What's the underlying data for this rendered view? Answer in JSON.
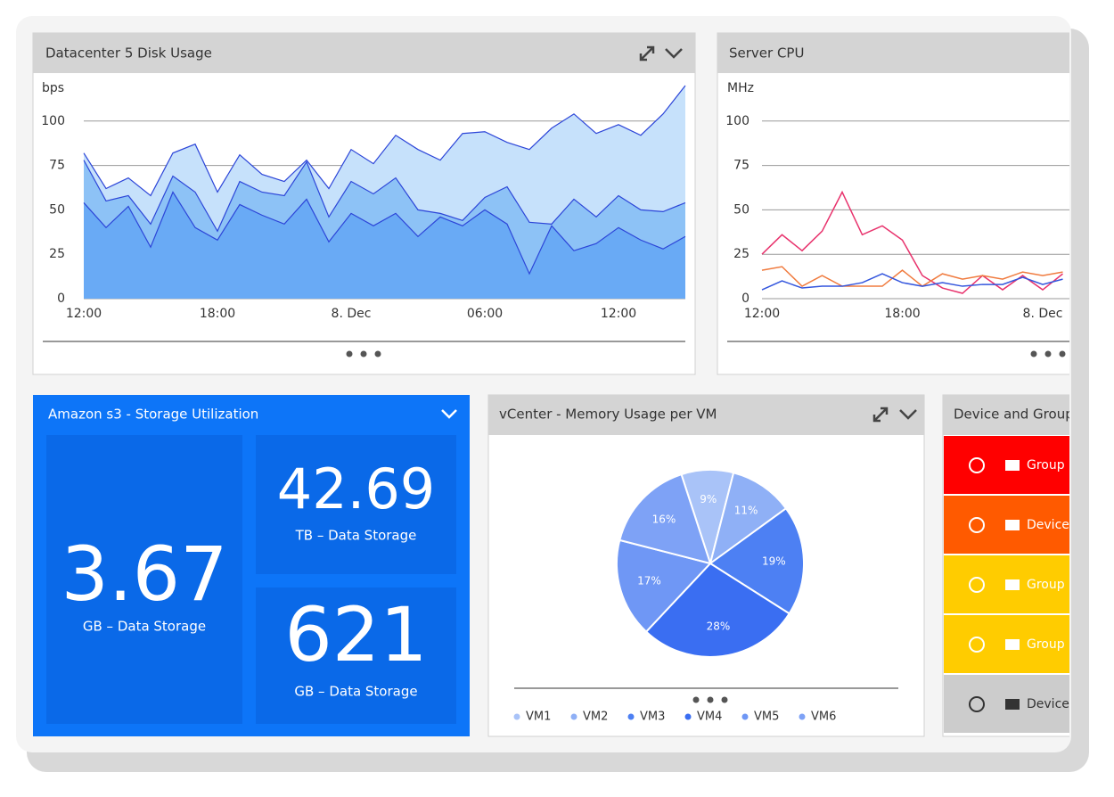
{
  "chart_data": [
    {
      "type": "area",
      "title": "Datacenter 5 Disk Usage",
      "y_label": "bps",
      "categories": [
        "12:00",
        null,
        null,
        null,
        null,
        null,
        "18:00",
        null,
        null,
        null,
        null,
        null,
        "8. Dec",
        null,
        null,
        null,
        null,
        null,
        "06:00",
        null,
        null,
        null,
        null,
        null,
        "12:00",
        null,
        null,
        null
      ],
      "ylim": [
        0,
        125
      ],
      "yticks": [
        0,
        25,
        50,
        75,
        100
      ],
      "grid": true,
      "series": [
        {
          "color": "#2c45d8",
          "fill": "#c6e1fb",
          "values": [
            82,
            62,
            68,
            58,
            82,
            87,
            60,
            81,
            70,
            66,
            78,
            62,
            84,
            76,
            92,
            84,
            78,
            93,
            94,
            88,
            84,
            96,
            104,
            93,
            98,
            92,
            104,
            120
          ]
        },
        {
          "color": "#2c45d8",
          "fill": "#8dc2f6",
          "values": [
            78,
            55,
            58,
            42,
            69,
            60,
            38,
            66,
            60,
            58,
            77,
            46,
            66,
            59,
            68,
            50,
            48,
            44,
            57,
            63,
            43,
            42,
            56,
            46,
            58,
            50,
            49,
            54
          ]
        },
        {
          "color": "#2c45d8",
          "fill": "#69aaf5",
          "values": [
            54,
            40,
            52,
            29,
            60,
            40,
            33,
            53,
            47,
            42,
            56,
            32,
            48,
            41,
            48,
            35,
            46,
            41,
            50,
            42,
            14,
            41,
            27,
            31,
            40,
            33,
            28,
            35
          ]
        }
      ]
    },
    {
      "type": "line",
      "title": "Server CPU",
      "y_label": "MHz",
      "categories": [
        "12:00",
        null,
        null,
        null,
        null,
        null,
        null,
        "18:00",
        null,
        null,
        null,
        null,
        null,
        null,
        "8. Dec",
        null
      ],
      "ylim": [
        0,
        125
      ],
      "yticks": [
        0,
        25,
        50,
        75,
        100
      ],
      "grid": true,
      "series": [
        {
          "color": "#e8336d",
          "values": [
            25,
            36,
            27,
            38,
            60,
            36,
            41,
            33,
            13,
            6,
            3,
            13,
            5,
            13,
            5,
            14
          ]
        },
        {
          "color": "#f07b3f",
          "values": [
            16,
            18,
            7,
            13,
            7,
            7,
            7,
            16,
            7,
            14,
            11,
            13,
            11,
            15,
            13,
            15
          ]
        },
        {
          "color": "#3355dd",
          "values": [
            5,
            10,
            6,
            7,
            7,
            9,
            14,
            9,
            7,
            9,
            7,
            8,
            8,
            12,
            8,
            11
          ]
        }
      ]
    },
    {
      "type": "pie",
      "title": "vCenter - Memory Usage per VM",
      "categories": [
        "VM1",
        "VM2",
        "VM3",
        "VM4",
        "VM5",
        "VM6"
      ],
      "values": [
        9,
        11,
        19,
        28,
        17,
        16
      ],
      "value_labels": [
        "9%",
        "11%",
        "19%",
        "28%",
        "17%",
        "16%"
      ],
      "colors": [
        "#a9c3f8",
        "#8fb0f6",
        "#4d80f3",
        "#3a6ef2",
        "#6f97f5",
        "#7ea2f6"
      ]
    }
  ],
  "storage_widget": {
    "title": "Amazon s3 - Storage Utilization",
    "tiles": [
      {
        "value": 3.67,
        "unit": "GB – Data Storage"
      },
      {
        "value": 42.69,
        "unit": "TB – Data Storage"
      },
      {
        "value": 621,
        "unit": "GB – Data Storage"
      }
    ]
  },
  "device_widget": {
    "title": "Device and Group",
    "rows": [
      {
        "label": "Group N",
        "color": "#ff0000",
        "text_color": "#ffffff"
      },
      {
        "label": "Device",
        "color": "#ff5a00",
        "text_color": "#ffffff"
      },
      {
        "label": "Group N",
        "color": "#ffcc00",
        "text_color": "#ffffff"
      },
      {
        "label": "Group N",
        "color": "#ffcc00",
        "text_color": "#ffffff"
      },
      {
        "label": "Device",
        "color": "#cccccc",
        "text_color": "#333333"
      }
    ]
  }
}
